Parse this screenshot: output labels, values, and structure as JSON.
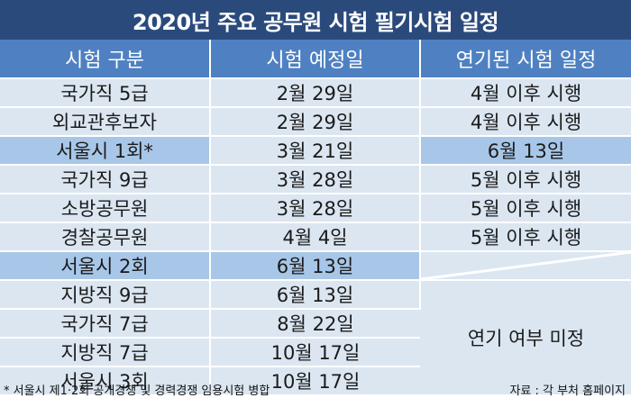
{
  "title": "2020년 주요 공무원 시험 필기시험 일정",
  "headers": [
    "시험 구분",
    "시험 예정일",
    "연기된 시험 일정"
  ],
  "rows": [
    {
      "category": "국가직 5급",
      "scheduled": "2월 29일",
      "postponed": "4월 이후 시행"
    },
    {
      "category": "외교관후보자",
      "scheduled": "2월 29일",
      "postponed": "4월 이후 시행"
    },
    {
      "category": "서울시 1회*",
      "scheduled": "3월 21일",
      "postponed": "6월 13일"
    },
    {
      "category": "국가직 9급",
      "scheduled": "3월 28일",
      "postponed": "5월 이후 시행"
    },
    {
      "category": "소방공무원",
      "scheduled": "3월 28일",
      "postponed": "5월 이후 시행"
    },
    {
      "category": "경찰공무원",
      "scheduled": "4월 4일",
      "postponed": "5월 이후 시행"
    },
    {
      "category": "서울시 2회",
      "scheduled": "6월 13일",
      "postponed": ""
    },
    {
      "category": "지방직 9급",
      "scheduled": "6월 13일",
      "postponed": ""
    },
    {
      "category": "국가직 7급",
      "scheduled": "8월 22일",
      "postponed": ""
    },
    {
      "category": "지방직 7급",
      "scheduled": "10월 17일",
      "postponed": ""
    },
    {
      "category": "서울시 3회",
      "scheduled": "10월 17일",
      "postponed": ""
    }
  ],
  "merged_postponed": "연기 여부 미정",
  "footnote": "* 서울시 제1·2회 공개경쟁 및 경력경쟁 임용시험 병합",
  "source": "자료 : 각 부처 홈페이지",
  "colors": {
    "title_bg": "#2b4a7c",
    "header_bg": "#4f81c2",
    "row_bg": "#dbe6f1",
    "highlight_bg": "#a8c7e8"
  }
}
